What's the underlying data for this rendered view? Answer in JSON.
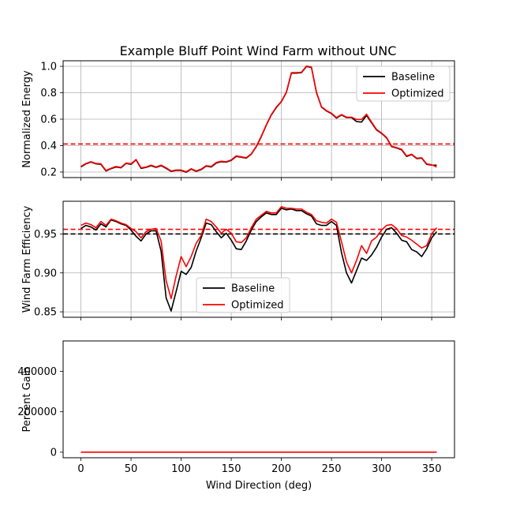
{
  "figure": {
    "title": "Example Bluff Point Wind Farm without UNC"
  },
  "colors": {
    "baseline": "#000000",
    "optimized": "#ff0000",
    "grid": "#b0b0b0"
  },
  "chart_data": [
    {
      "type": "line",
      "ylabel": "Normalized Energy",
      "xlim": [
        -17.75,
        372.75
      ],
      "ylim": [
        0.158,
        1.042
      ],
      "yticks": [
        0.2,
        0.4,
        0.6,
        0.8,
        1.0
      ],
      "ytick_labels": [
        "0.2",
        "0.4",
        "0.6",
        "0.8",
        "1.0"
      ],
      "xticks": [
        0,
        50,
        100,
        150,
        200,
        250,
        300,
        350
      ],
      "xtick_labels": [],
      "grid": true,
      "legend": "upper right",
      "hlines": [
        {
          "y": 0.412,
          "color": "#ff0000",
          "style": "dashed"
        }
      ],
      "x": [
        0,
        5,
        10,
        15,
        20,
        25,
        30,
        35,
        40,
        45,
        50,
        55,
        60,
        65,
        70,
        75,
        80,
        85,
        90,
        95,
        100,
        105,
        110,
        115,
        120,
        125,
        130,
        135,
        140,
        145,
        150,
        155,
        160,
        165,
        170,
        175,
        180,
        185,
        190,
        195,
        200,
        205,
        210,
        215,
        220,
        225,
        230,
        235,
        240,
        245,
        250,
        255,
        260,
        265,
        270,
        275,
        280,
        285,
        290,
        295,
        300,
        305,
        310,
        315,
        320,
        325,
        330,
        335,
        340,
        345,
        350,
        355
      ],
      "series": [
        {
          "name": "Baseline",
          "color": "#000000",
          "values": [
            0.238,
            0.262,
            0.275,
            0.262,
            0.258,
            0.208,
            0.225,
            0.238,
            0.232,
            0.265,
            0.258,
            0.292,
            0.228,
            0.235,
            0.248,
            0.235,
            0.248,
            0.228,
            0.205,
            0.212,
            0.212,
            0.198,
            0.222,
            0.205,
            0.218,
            0.245,
            0.238,
            0.268,
            0.278,
            0.275,
            0.288,
            0.318,
            0.312,
            0.305,
            0.335,
            0.392,
            0.468,
            0.555,
            0.632,
            0.688,
            0.732,
            0.802,
            0.948,
            0.948,
            0.952,
            0.998,
            0.992,
            0.802,
            0.692,
            0.662,
            0.642,
            0.608,
            0.632,
            0.612,
            0.612,
            0.582,
            0.578,
            0.628,
            0.572,
            0.518,
            0.492,
            0.458,
            0.392,
            0.382,
            0.368,
            0.318,
            0.332,
            0.302,
            0.305,
            0.258,
            0.252,
            0.252
          ]
        },
        {
          "name": "Optimized",
          "color": "#ff0000",
          "values": [
            0.242,
            0.265,
            0.278,
            0.265,
            0.262,
            0.212,
            0.228,
            0.242,
            0.235,
            0.268,
            0.262,
            0.295,
            0.232,
            0.238,
            0.252,
            0.238,
            0.252,
            0.232,
            0.208,
            0.215,
            0.215,
            0.202,
            0.225,
            0.208,
            0.222,
            0.248,
            0.242,
            0.272,
            0.282,
            0.278,
            0.292,
            0.322,
            0.315,
            0.308,
            0.338,
            0.395,
            0.472,
            0.558,
            0.635,
            0.692,
            0.735,
            0.805,
            0.952,
            0.952,
            0.955,
            1.002,
            0.995,
            0.805,
            0.695,
            0.665,
            0.645,
            0.612,
            0.635,
            0.615,
            0.615,
            0.598,
            0.598,
            0.638,
            0.578,
            0.522,
            0.495,
            0.462,
            0.395,
            0.385,
            0.372,
            0.322,
            0.335,
            0.305,
            0.308,
            0.262,
            0.255,
            0.238
          ]
        }
      ]
    },
    {
      "type": "line",
      "ylabel": "Wind Farm Efficiency",
      "xlim": [
        -17.75,
        372.75
      ],
      "ylim": [
        0.843,
        0.992
      ],
      "yticks": [
        0.85,
        0.9,
        0.95
      ],
      "ytick_labels": [
        "0.85",
        "0.90",
        "0.95"
      ],
      "xticks": [
        0,
        50,
        100,
        150,
        200,
        250,
        300,
        350
      ],
      "xtick_labels": [],
      "grid": true,
      "legend": "lower center",
      "hlines": [
        {
          "y": 0.95,
          "color": "#000000",
          "style": "dashed"
        },
        {
          "y": 0.956,
          "color": "#ff0000",
          "style": "dashed"
        }
      ],
      "x": [
        0,
        5,
        10,
        15,
        20,
        25,
        30,
        35,
        40,
        45,
        50,
        55,
        60,
        65,
        70,
        75,
        80,
        85,
        90,
        95,
        100,
        105,
        110,
        115,
        120,
        125,
        130,
        135,
        140,
        145,
        150,
        155,
        160,
        165,
        170,
        175,
        180,
        185,
        190,
        195,
        200,
        205,
        210,
        215,
        220,
        225,
        230,
        235,
        240,
        245,
        250,
        255,
        260,
        265,
        270,
        275,
        280,
        285,
        290,
        295,
        300,
        305,
        310,
        315,
        320,
        325,
        330,
        335,
        340,
        345,
        350,
        355
      ],
      "series": [
        {
          "name": "Baseline",
          "color": "#000000",
          "values": [
            0.957,
            0.961,
            0.959,
            0.955,
            0.963,
            0.959,
            0.968,
            0.966,
            0.963,
            0.961,
            0.955,
            0.947,
            0.941,
            0.95,
            0.954,
            0.954,
            0.928,
            0.868,
            0.851,
            0.876,
            0.902,
            0.898,
            0.907,
            0.928,
            0.945,
            0.964,
            0.962,
            0.953,
            0.945,
            0.951,
            0.942,
            0.931,
            0.93,
            0.941,
            0.955,
            0.966,
            0.972,
            0.977,
            0.975,
            0.975,
            0.983,
            0.981,
            0.982,
            0.98,
            0.98,
            0.976,
            0.973,
            0.963,
            0.961,
            0.961,
            0.966,
            0.961,
            0.926,
            0.9,
            0.887,
            0.903,
            0.919,
            0.916,
            0.923,
            0.933,
            0.946,
            0.956,
            0.958,
            0.951,
            0.942,
            0.94,
            0.93,
            0.927,
            0.921,
            0.931,
            0.945,
            0.953
          ]
        },
        {
          "name": "Optimized",
          "color": "#ff0000",
          "values": [
            0.961,
            0.964,
            0.962,
            0.958,
            0.966,
            0.961,
            0.969,
            0.967,
            0.964,
            0.962,
            0.957,
            0.953,
            0.945,
            0.953,
            0.956,
            0.957,
            0.941,
            0.89,
            0.867,
            0.896,
            0.921,
            0.908,
            0.921,
            0.938,
            0.948,
            0.969,
            0.966,
            0.959,
            0.951,
            0.956,
            0.951,
            0.94,
            0.939,
            0.945,
            0.958,
            0.969,
            0.974,
            0.979,
            0.977,
            0.977,
            0.985,
            0.983,
            0.983,
            0.982,
            0.982,
            0.978,
            0.975,
            0.967,
            0.965,
            0.964,
            0.969,
            0.965,
            0.94,
            0.914,
            0.9,
            0.916,
            0.935,
            0.925,
            0.941,
            0.946,
            0.955,
            0.961,
            0.962,
            0.957,
            0.948,
            0.946,
            0.942,
            0.937,
            0.932,
            0.935,
            0.95,
            0.958
          ]
        }
      ]
    },
    {
      "type": "line",
      "ylabel": "Percent Gain",
      "xlabel": "Wind Direction (deg)",
      "xlim": [
        -17.75,
        372.75
      ],
      "ylim": [
        -27500,
        550000
      ],
      "yticks": [
        0,
        200000,
        400000
      ],
      "ytick_labels": [
        "0",
        "200000",
        "400000"
      ],
      "xticks": [
        0,
        50,
        100,
        150,
        200,
        250,
        300,
        350
      ],
      "xtick_labels": [
        "0",
        "50",
        "100",
        "150",
        "200",
        "250",
        "300",
        "350"
      ],
      "grid": false,
      "x": [
        0,
        355
      ],
      "series": [
        {
          "color": "#ff0000",
          "values": [
            0,
            0
          ]
        }
      ]
    }
  ]
}
